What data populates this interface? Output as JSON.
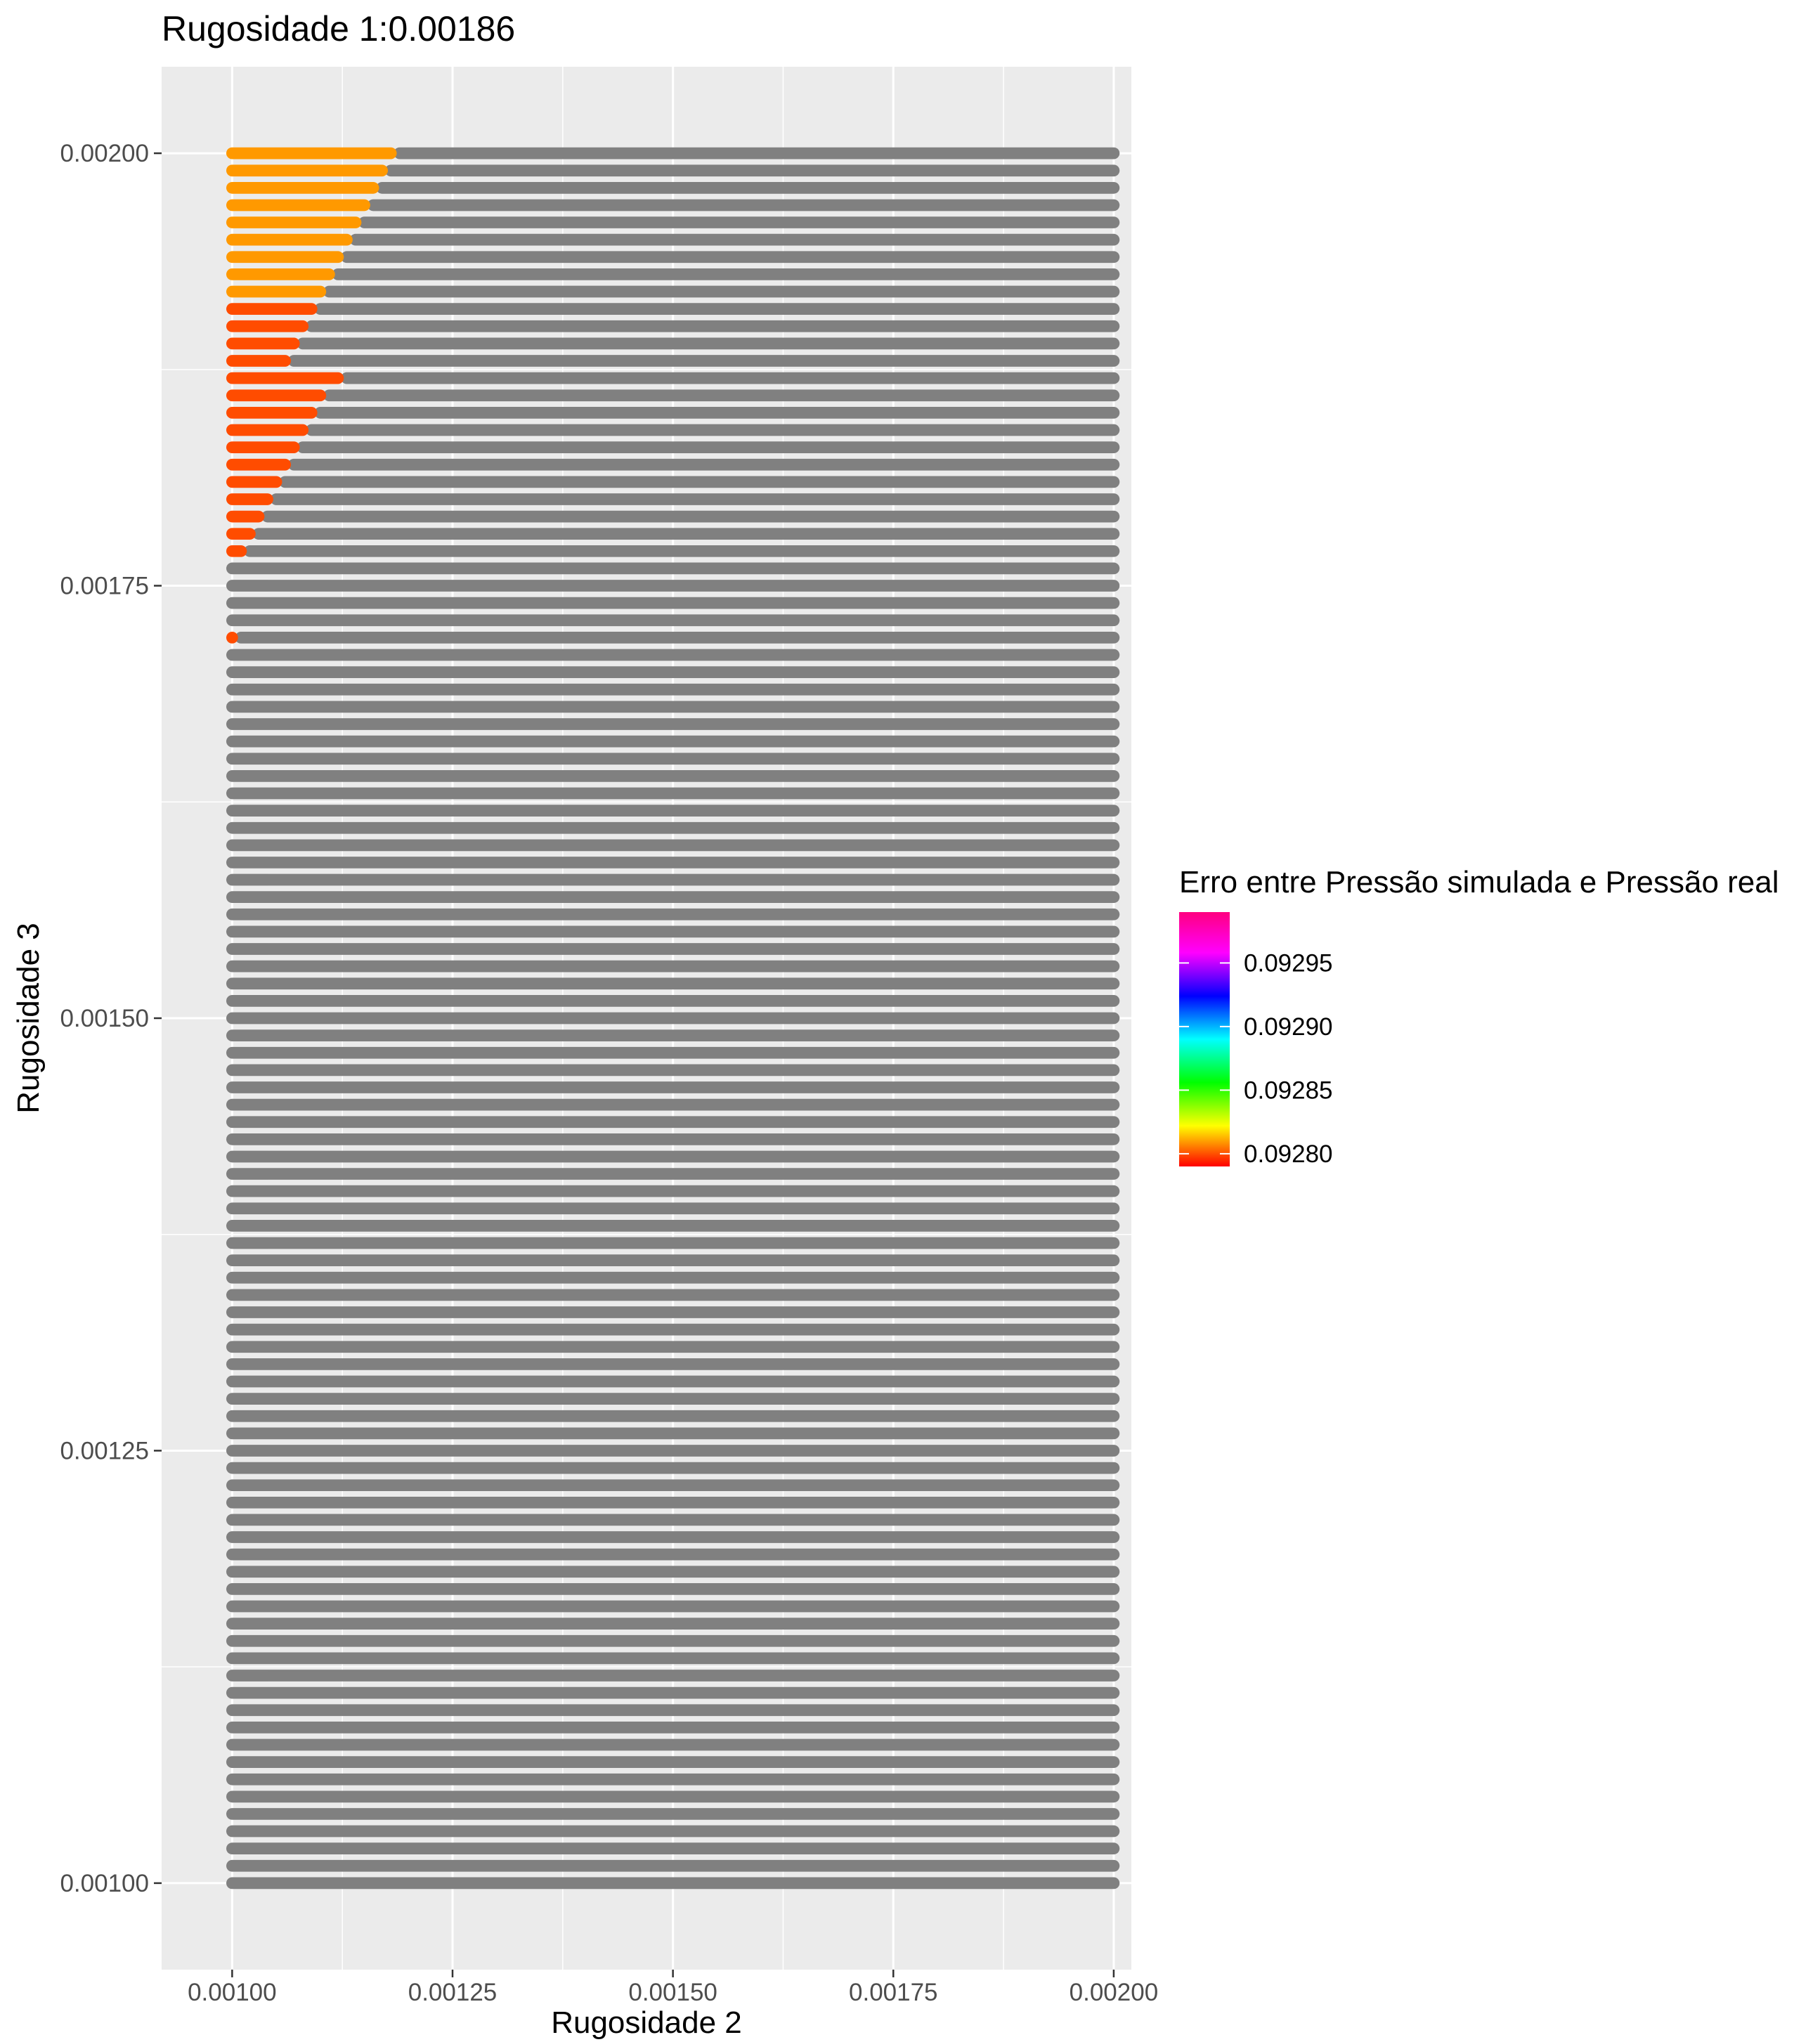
{
  "chart_data": {
    "type": "scatter",
    "title": "Rugosidade 1:0.00186",
    "xlabel": "Rugosidade 2",
    "ylabel": "Rugosidade 3",
    "xlim": [
      0.00092,
      0.00202
    ],
    "ylim": [
      0.00095,
      0.00205
    ],
    "xticks": [
      "0.00100",
      "0.00125",
      "0.00150",
      "0.00175",
      "0.00200"
    ],
    "xtick_values": [
      0.001,
      0.00125,
      0.0015,
      0.00175,
      0.002
    ],
    "yticks": [
      "0.00100",
      "0.00125",
      "0.00150",
      "0.00175",
      "0.00200"
    ],
    "ytick_values": [
      0.001,
      0.00125,
      0.0015,
      0.00175,
      0.002
    ],
    "grid": true,
    "grid_x_range": [
      0.001,
      0.002,
      1e-05
    ],
    "grid_y_range": [
      0.001,
      0.002,
      1e-05
    ],
    "na_color": "#808080",
    "panel_background": "#EBEBEB",
    "legend": {
      "title": "Erro entre Pressão simulada e Pressão real",
      "position": "right",
      "labels": [
        "0.09280",
        "0.09285",
        "0.09290",
        "0.09295"
      ],
      "values": [
        0.0928,
        0.09285,
        0.0929,
        0.09295
      ],
      "range": [
        0.09279,
        0.09299
      ],
      "colors": [
        "#FF0000",
        "#FFFF00",
        "#00FF00",
        "#00FFFF",
        "#0000FF",
        "#FF00FF",
        "#FF0080"
      ]
    },
    "colored_series": [
      {
        "y": 0.002,
        "x_max": 0.00118,
        "value": 0.09281
      },
      {
        "y": 0.00199,
        "x_max": 0.00117,
        "value": 0.09281
      },
      {
        "y": 0.00198,
        "x_max": 0.00116,
        "value": 0.09281
      },
      {
        "y": 0.00197,
        "x_max": 0.00115,
        "value": 0.09281
      },
      {
        "y": 0.00196,
        "x_max": 0.00114,
        "value": 0.09281
      },
      {
        "y": 0.00195,
        "x_max": 0.00113,
        "value": 0.09281
      },
      {
        "y": 0.00194,
        "x_max": 0.00112,
        "value": 0.09281
      },
      {
        "y": 0.00193,
        "x_max": 0.00111,
        "value": 0.09281
      },
      {
        "y": 0.00192,
        "x_max": 0.0011,
        "value": 0.09281
      },
      {
        "y": 0.00191,
        "x_max": 0.00109,
        "value": 0.0928
      },
      {
        "y": 0.0019,
        "x_max": 0.00108,
        "value": 0.0928
      },
      {
        "y": 0.00189,
        "x_max": 0.00107,
        "value": 0.0928
      },
      {
        "y": 0.00188,
        "x_max": 0.00106,
        "value": 0.0928
      },
      {
        "y": 0.00187,
        "x_max": 0.00112,
        "value": 0.0928
      },
      {
        "y": 0.00186,
        "x_max": 0.0011,
        "value": 0.0928
      },
      {
        "y": 0.00185,
        "x_max": 0.00109,
        "value": 0.0928
      },
      {
        "y": 0.00184,
        "x_max": 0.00108,
        "value": 0.0928
      },
      {
        "y": 0.00183,
        "x_max": 0.00107,
        "value": 0.0928
      },
      {
        "y": 0.00182,
        "x_max": 0.00106,
        "value": 0.0928
      },
      {
        "y": 0.00181,
        "x_max": 0.00105,
        "value": 0.0928
      },
      {
        "y": 0.0018,
        "x_max": 0.00104,
        "value": 0.0928
      },
      {
        "y": 0.00179,
        "x_max": 0.00103,
        "value": 0.0928
      },
      {
        "y": 0.00178,
        "x_max": 0.00102,
        "value": 0.0928
      },
      {
        "y": 0.00177,
        "x_max": 0.00101,
        "value": 0.0928
      },
      {
        "y": 0.00172,
        "x_max": 0.001,
        "value": 0.0928
      }
    ]
  }
}
